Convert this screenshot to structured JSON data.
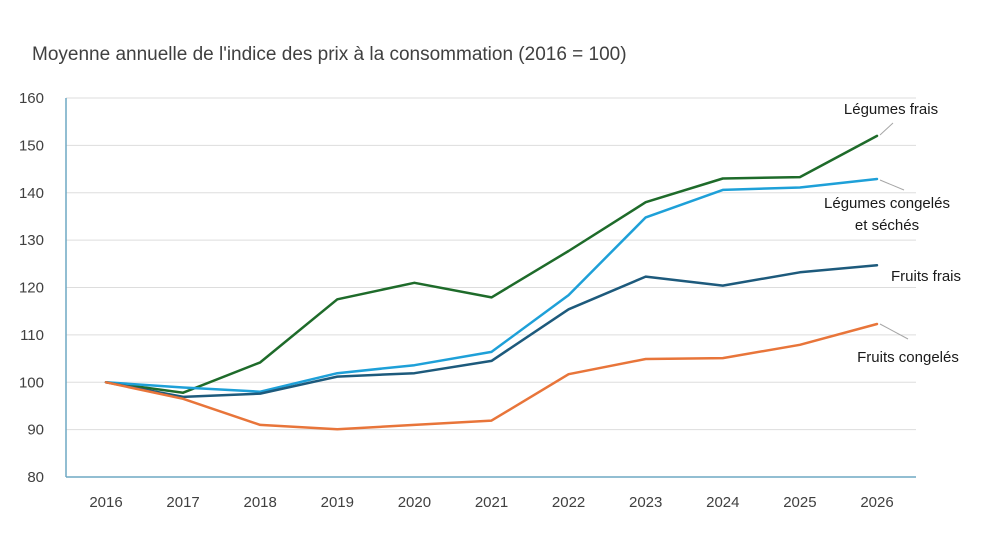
{
  "chart_data": {
    "type": "line",
    "title": "Moyenne annuelle de l'indice des prix à la consommation (2016 = 100)",
    "xlabel": "",
    "ylabel": "",
    "x": [
      "2016",
      "2017",
      "2018",
      "2019",
      "2020",
      "2021",
      "2022",
      "2023",
      "2024",
      "2025",
      "2026"
    ],
    "ylim": [
      80,
      160
    ],
    "yticks": [
      80,
      90,
      100,
      110,
      120,
      130,
      140,
      150,
      160
    ],
    "grid": true,
    "legend": "inline-right",
    "series": [
      {
        "name": "Légumes frais",
        "label_lines": [
          "Légumes frais"
        ],
        "color": "#1e6b2a",
        "values": [
          100,
          97.8,
          104.2,
          117.5,
          121.0,
          117.9,
          127.7,
          138.0,
          143.0,
          143.3,
          152.0
        ]
      },
      {
        "name": "Légumes congelés et séchés",
        "label_lines": [
          "Légumes congelés",
          "et séchés"
        ],
        "color": "#1ea0d8",
        "values": [
          100,
          98.9,
          98.0,
          101.9,
          103.6,
          106.4,
          118.4,
          134.8,
          140.6,
          141.1,
          142.9
        ]
      },
      {
        "name": "Fruits frais",
        "label_lines": [
          "Fruits frais"
        ],
        "color": "#1d5a7c",
        "values": [
          100,
          96.9,
          97.6,
          101.2,
          101.9,
          104.5,
          115.4,
          122.3,
          120.4,
          123.2,
          124.7
        ]
      },
      {
        "name": "Fruits congelés",
        "label_lines": [
          "Fruits congelés"
        ],
        "color": "#e8753a",
        "values": [
          100,
          96.5,
          91.0,
          90.1,
          91.0,
          91.9,
          101.7,
          104.9,
          105.1,
          107.9,
          112.3
        ]
      }
    ],
    "axis_color": "#6fa8c4",
    "grid_color": "#dddddd",
    "leader_color": "#a6a6a6"
  }
}
